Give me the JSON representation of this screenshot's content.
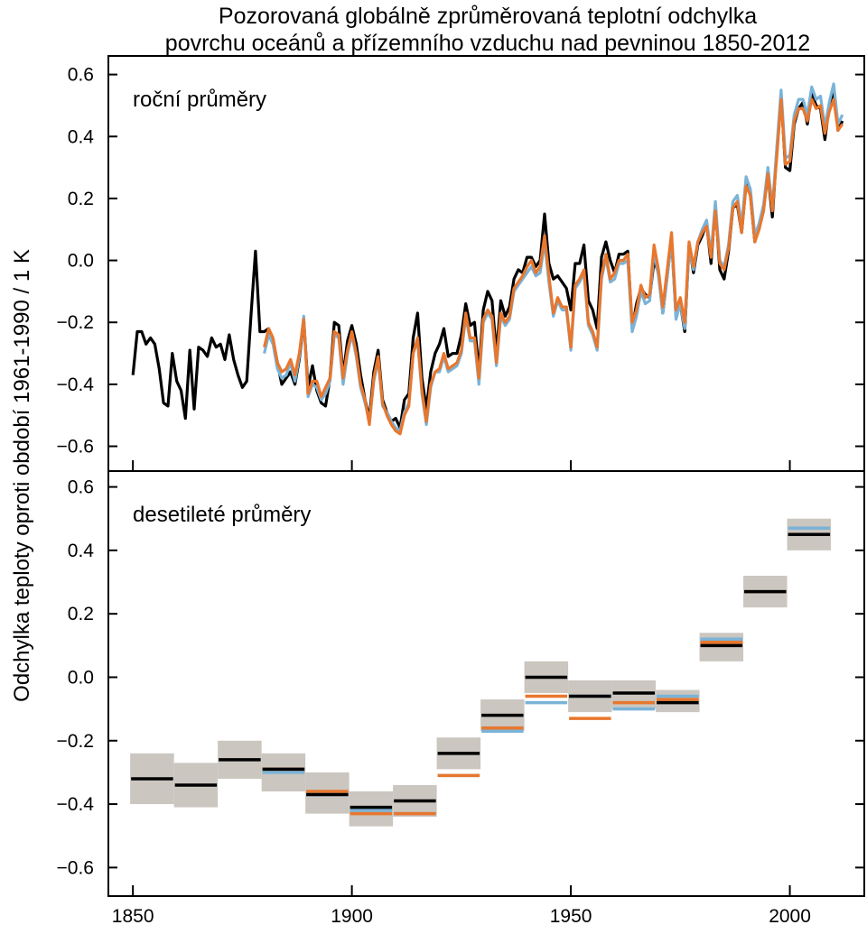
{
  "title": [
    "Pozorovaná globálně zprůměrovaná teplotní odchylka",
    "povrchu oceánů a přízemního vzduchu nad pevninou 1850-2012"
  ],
  "y_label": "Odchylka teploty oproti období 1961-1990  / 1 K",
  "chart_data": [
    {
      "type": "line",
      "panel_label": "roční průměry",
      "xlim": [
        1844.4,
        2017
      ],
      "ylim": [
        -0.68,
        0.66
      ],
      "xticks": [
        1850,
        1900,
        1950,
        2000
      ],
      "yticks": [
        {
          "value": -0.6,
          "label": "−0.6"
        },
        {
          "value": -0.4,
          "label": "−0.4"
        },
        {
          "value": -0.2,
          "label": "−0.2"
        },
        {
          "value": 0,
          "label": "0.0"
        },
        0.2,
        0.4,
        0.6
      ],
      "x": [
        1850,
        1851,
        1852,
        1853,
        1854,
        1855,
        1856,
        1857,
        1858,
        1859,
        1860,
        1861,
        1862,
        1863,
        1864,
        1865,
        1866,
        1867,
        1868,
        1869,
        1870,
        1871,
        1872,
        1873,
        1874,
        1875,
        1876,
        1877,
        1878,
        1879,
        1880,
        1881,
        1882,
        1883,
        1884,
        1885,
        1886,
        1887,
        1888,
        1889,
        1890,
        1891,
        1892,
        1893,
        1894,
        1895,
        1896,
        1897,
        1898,
        1899,
        1900,
        1901,
        1902,
        1903,
        1904,
        1905,
        1906,
        1907,
        1908,
        1909,
        1910,
        1911,
        1912,
        1913,
        1914,
        1915,
        1916,
        1917,
        1918,
        1919,
        1920,
        1921,
        1922,
        1923,
        1924,
        1925,
        1926,
        1927,
        1928,
        1929,
        1930,
        1931,
        1932,
        1933,
        1934,
        1935,
        1936,
        1937,
        1938,
        1939,
        1940,
        1941,
        1942,
        1943,
        1944,
        1945,
        1946,
        1947,
        1948,
        1949,
        1950,
        1951,
        1952,
        1953,
        1954,
        1955,
        1956,
        1957,
        1958,
        1959,
        1960,
        1961,
        1962,
        1963,
        1964,
        1965,
        1966,
        1967,
        1968,
        1969,
        1970,
        1971,
        1972,
        1973,
        1974,
        1975,
        1976,
        1977,
        1978,
        1979,
        1980,
        1981,
        1982,
        1983,
        1984,
        1985,
        1986,
        1987,
        1988,
        1989,
        1990,
        1991,
        1992,
        1993,
        1994,
        1995,
        1996,
        1997,
        1998,
        1999,
        2000,
        2001,
        2002,
        2003,
        2004,
        2005,
        2006,
        2007,
        2008,
        2009,
        2010,
        2011,
        2012
      ],
      "series": [
        {
          "color": "#000000",
          "values": [
            -0.37,
            -0.23,
            -0.23,
            -0.27,
            -0.25,
            -0.27,
            -0.35,
            -0.46,
            -0.47,
            -0.3,
            -0.39,
            -0.42,
            -0.51,
            -0.29,
            -0.48,
            -0.28,
            -0.29,
            -0.31,
            -0.25,
            -0.28,
            -0.27,
            -0.32,
            -0.24,
            -0.32,
            -0.37,
            -0.41,
            -0.39,
            -0.17,
            0.03,
            -0.23,
            -0.23,
            -0.22,
            -0.26,
            -0.33,
            -0.4,
            -0.38,
            -0.36,
            -0.4,
            -0.32,
            -0.19,
            -0.41,
            -0.34,
            -0.42,
            -0.46,
            -0.47,
            -0.38,
            -0.2,
            -0.21,
            -0.37,
            -0.26,
            -0.21,
            -0.27,
            -0.37,
            -0.45,
            -0.51,
            -0.36,
            -0.29,
            -0.45,
            -0.49,
            -0.52,
            -0.51,
            -0.54,
            -0.45,
            -0.43,
            -0.25,
            -0.17,
            -0.38,
            -0.48,
            -0.36,
            -0.3,
            -0.27,
            -0.22,
            -0.31,
            -0.3,
            -0.3,
            -0.24,
            -0.14,
            -0.21,
            -0.2,
            -0.36,
            -0.16,
            -0.1,
            -0.13,
            -0.3,
            -0.13,
            -0.18,
            -0.15,
            -0.06,
            -0.03,
            -0.04,
            0.01,
            0.01,
            -0.02,
            0.0,
            0.15,
            -0.01,
            -0.06,
            -0.05,
            -0.07,
            -0.09,
            -0.16,
            -0.01,
            -0.01,
            0.05,
            -0.13,
            -0.16,
            -0.22,
            0.01,
            0.06,
            0.0,
            -0.04,
            0.02,
            0.02,
            0.03,
            -0.22,
            -0.14,
            -0.09,
            -0.11,
            -0.12,
            0.0,
            -0.04,
            -0.17,
            -0.05,
            0.07,
            -0.18,
            -0.14,
            -0.23,
            0.05,
            -0.04,
            0.05,
            0.08,
            0.12,
            -0.01,
            0.18,
            -0.03,
            -0.06,
            0.03,
            0.17,
            0.18,
            0.09,
            0.25,
            0.21,
            0.06,
            0.11,
            0.17,
            0.28,
            0.14,
            0.35,
            0.53,
            0.3,
            0.29,
            0.44,
            0.49,
            0.51,
            0.44,
            0.54,
            0.5,
            0.49,
            0.39,
            0.5,
            0.55,
            0.42,
            0.45
          ]
        },
        {
          "color": "#7ab3d8",
          "values": [
            null,
            null,
            null,
            null,
            null,
            null,
            null,
            null,
            null,
            null,
            null,
            null,
            null,
            null,
            null,
            null,
            null,
            null,
            null,
            null,
            null,
            null,
            null,
            null,
            null,
            null,
            null,
            null,
            null,
            null,
            -0.3,
            -0.24,
            -0.27,
            -0.35,
            -0.38,
            -0.37,
            -0.33,
            -0.39,
            -0.31,
            -0.18,
            -0.44,
            -0.4,
            -0.41,
            -0.45,
            -0.43,
            -0.39,
            -0.24,
            -0.25,
            -0.4,
            -0.3,
            -0.24,
            -0.31,
            -0.41,
            -0.46,
            -0.52,
            -0.39,
            -0.32,
            -0.47,
            -0.49,
            -0.52,
            -0.54,
            -0.55,
            -0.49,
            -0.46,
            -0.3,
            -0.26,
            -0.43,
            -0.53,
            -0.41,
            -0.36,
            -0.36,
            -0.31,
            -0.36,
            -0.35,
            -0.34,
            -0.3,
            -0.18,
            -0.26,
            -0.26,
            -0.4,
            -0.2,
            -0.17,
            -0.19,
            -0.34,
            -0.18,
            -0.21,
            -0.19,
            -0.1,
            -0.08,
            -0.06,
            -0.04,
            -0.02,
            -0.05,
            -0.04,
            0.06,
            -0.07,
            -0.18,
            -0.13,
            -0.16,
            -0.16,
            -0.29,
            -0.09,
            -0.07,
            -0.04,
            -0.21,
            -0.24,
            -0.29,
            -0.06,
            0.01,
            -0.07,
            -0.06,
            -0.01,
            -0.01,
            0.0,
            -0.23,
            -0.18,
            -0.1,
            -0.14,
            -0.13,
            0.03,
            -0.05,
            -0.17,
            -0.05,
            0.07,
            -0.19,
            -0.14,
            -0.22,
            0.04,
            -0.03,
            0.06,
            0.1,
            0.13,
            0.02,
            0.19,
            0.0,
            -0.02,
            0.05,
            0.19,
            0.21,
            0.11,
            0.27,
            0.23,
            0.08,
            0.12,
            0.18,
            0.3,
            0.17,
            0.36,
            0.55,
            0.33,
            0.34,
            0.47,
            0.52,
            0.52,
            0.47,
            0.56,
            0.52,
            0.53,
            0.43,
            0.51,
            0.57,
            0.44,
            0.47
          ]
        },
        {
          "color": "#e8772e",
          "values": [
            null,
            null,
            null,
            null,
            null,
            null,
            null,
            null,
            null,
            null,
            null,
            null,
            null,
            null,
            null,
            null,
            null,
            null,
            null,
            null,
            null,
            null,
            null,
            null,
            null,
            null,
            null,
            null,
            null,
            null,
            -0.28,
            -0.22,
            -0.25,
            -0.33,
            -0.36,
            -0.35,
            -0.32,
            -0.37,
            -0.3,
            -0.19,
            -0.43,
            -0.39,
            -0.39,
            -0.44,
            -0.41,
            -0.38,
            -0.23,
            -0.24,
            -0.38,
            -0.29,
            -0.23,
            -0.3,
            -0.4,
            -0.45,
            -0.53,
            -0.38,
            -0.31,
            -0.46,
            -0.5,
            -0.53,
            -0.55,
            -0.56,
            -0.5,
            -0.47,
            -0.3,
            -0.25,
            -0.42,
            -0.52,
            -0.4,
            -0.36,
            -0.35,
            -0.3,
            -0.35,
            -0.34,
            -0.33,
            -0.29,
            -0.17,
            -0.25,
            -0.25,
            -0.38,
            -0.19,
            -0.16,
            -0.18,
            -0.33,
            -0.17,
            -0.2,
            -0.18,
            -0.09,
            -0.07,
            -0.05,
            -0.02,
            0.0,
            -0.04,
            -0.02,
            0.08,
            -0.05,
            -0.17,
            -0.12,
            -0.15,
            -0.15,
            -0.28,
            -0.08,
            -0.06,
            -0.03,
            -0.2,
            -0.23,
            -0.28,
            -0.05,
            0.02,
            -0.06,
            -0.04,
            0.0,
            0.0,
            0.02,
            -0.2,
            -0.16,
            -0.08,
            -0.12,
            -0.11,
            0.05,
            -0.03,
            -0.15,
            -0.03,
            0.09,
            -0.16,
            -0.12,
            -0.2,
            0.06,
            -0.02,
            0.06,
            0.09,
            0.11,
            0.01,
            0.16,
            -0.01,
            -0.03,
            0.04,
            0.17,
            0.19,
            0.09,
            0.24,
            0.21,
            0.06,
            0.1,
            0.16,
            0.28,
            0.16,
            0.33,
            0.52,
            0.31,
            0.32,
            0.45,
            0.49,
            0.49,
            0.45,
            0.52,
            0.49,
            0.5,
            0.41,
            0.48,
            0.52,
            0.42,
            0.44
          ]
        }
      ]
    },
    {
      "type": "interval",
      "panel_label": "desetileté průměry",
      "xlim": [
        1844.4,
        2017
      ],
      "ylim": [
        -0.69,
        0.65
      ],
      "xticks": [
        1850,
        1900,
        1950,
        2000
      ],
      "yticks": [
        {
          "value": -0.6,
          "label": "−0.6"
        },
        {
          "value": -0.4,
          "label": "−0.4"
        },
        {
          "value": -0.2,
          "label": "−0.2"
        },
        {
          "value": 0,
          "label": "0.0"
        },
        0.2,
        0.4,
        0.6
      ],
      "x": [
        1850,
        1860,
        1870,
        1880,
        1890,
        1900,
        1910,
        1920,
        1930,
        1940,
        1950,
        1960,
        1970,
        1980,
        1990,
        2000
      ],
      "uncertainty": {
        "color": "#cbc6c0",
        "low": [
          -0.4,
          -0.41,
          -0.32,
          -0.36,
          -0.43,
          -0.47,
          -0.44,
          -0.29,
          -0.17,
          -0.05,
          -0.11,
          -0.1,
          -0.11,
          0.05,
          0.22,
          0.4
        ],
        "high": [
          -0.24,
          -0.27,
          -0.2,
          -0.24,
          -0.3,
          -0.36,
          -0.34,
          -0.19,
          -0.07,
          0.05,
          -0.01,
          -0.01,
          -0.04,
          0.14,
          0.32,
          0.5
        ]
      },
      "series": [
        {
          "color": "#7ab3d8",
          "values": [
            null,
            null,
            null,
            -0.3,
            -0.37,
            -0.42,
            -0.43,
            -0.31,
            -0.17,
            -0.08,
            -0.06,
            -0.1,
            -0.06,
            0.12,
            0.27,
            0.47
          ]
        },
        {
          "color": "#e8772e",
          "values": [
            null,
            null,
            null,
            -0.29,
            -0.36,
            -0.43,
            -0.43,
            -0.31,
            -0.16,
            -0.06,
            -0.13,
            -0.08,
            -0.07,
            0.11,
            0.27,
            0.45
          ]
        },
        {
          "color": "#000000",
          "values": [
            -0.32,
            -0.34,
            -0.26,
            -0.29,
            -0.37,
            -0.41,
            -0.39,
            -0.24,
            -0.12,
            0.0,
            -0.06,
            -0.05,
            -0.08,
            0.1,
            0.27,
            0.45
          ]
        }
      ]
    }
  ]
}
